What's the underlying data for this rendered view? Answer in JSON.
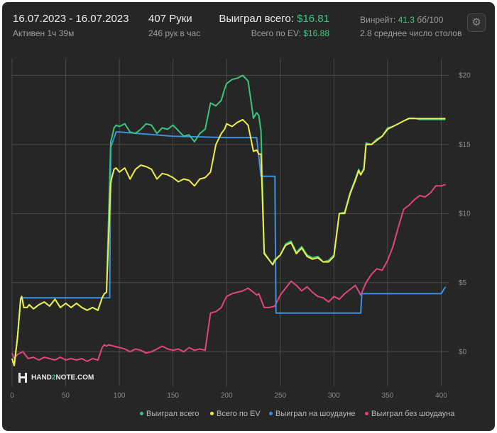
{
  "header": {
    "date_range": "16.07.2023 - 16.07.2023",
    "active_time": "Активен 1ч 39м",
    "hands": "407 Руки",
    "hands_per_hour": "246 рук в час",
    "won_total_label": "Выиграл всего:",
    "won_total_value": "$16.81",
    "ev_total_label": "Всего по EV:",
    "ev_total_value": "$16.88",
    "winrate_label": "Винрейт:",
    "winrate_value": "41.3",
    "winrate_unit": "бб/100",
    "avg_tables": "2.8 среднее число столов"
  },
  "icons": {
    "settings": "gear-icon"
  },
  "logo": {
    "text_a": "HAND",
    "text_b": "2",
    "text_c": "NOTE.COM"
  },
  "colors": {
    "background": "#262626",
    "won_total": "#3bc47d",
    "ev_total": "#f0ec4a",
    "showdown": "#3d8fe0",
    "non_showdown": "#e0457b",
    "grid": "#4a4a4a",
    "axis_text": "#8a8a8a"
  },
  "chart_data": {
    "type": "line",
    "title": "",
    "xlabel": "",
    "ylabel": "",
    "xlim": [
      0,
      407
    ],
    "ylim": [
      -2.5,
      21.2
    ],
    "x_ticks": [
      0,
      50,
      100,
      150,
      200,
      250,
      300,
      350,
      400
    ],
    "y_ticks": [
      0,
      5,
      10,
      15,
      20
    ],
    "y_tick_labels": [
      "$0",
      "$5",
      "$10",
      "$15",
      "$20"
    ],
    "grid": true,
    "legend_position": "bottom-right",
    "series": [
      {
        "key": "won_total",
        "name": "Выиграл всего",
        "x": [
          0,
          2,
          5,
          8,
          9,
          11,
          14,
          16,
          20,
          25,
          30,
          35,
          40,
          45,
          50,
          55,
          60,
          65,
          70,
          75,
          80,
          84,
          86,
          88,
          92,
          93,
          95,
          97,
          100,
          105,
          110,
          115,
          120,
          125,
          130,
          135,
          140,
          145,
          150,
          155,
          160,
          165,
          170,
          175,
          180,
          185,
          190,
          195,
          198,
          200,
          205,
          210,
          215,
          220,
          225,
          228,
          230,
          232,
          235,
          240,
          243,
          245,
          250,
          255,
          260,
          265,
          270,
          275,
          280,
          285,
          290,
          295,
          300,
          305,
          310,
          315,
          320,
          323,
          325,
          328,
          330,
          335,
          340,
          345,
          350,
          355,
          360,
          365,
          370,
          375,
          380,
          385,
          390,
          395,
          400,
          404
        ],
        "y": [
          -0.5,
          -1.0,
          1.0,
          3.8,
          4.0,
          3.2,
          3.2,
          3.4,
          3.1,
          3.4,
          3.6,
          3.3,
          3.8,
          3.2,
          3.5,
          3.2,
          3.5,
          3.2,
          3.0,
          3.2,
          3.0,
          3.9,
          4.2,
          4.3,
          15.2,
          15.5,
          16.2,
          16.4,
          16.3,
          16.5,
          15.9,
          15.8,
          16.1,
          16.5,
          16.4,
          15.8,
          16.2,
          16.1,
          16.4,
          16.0,
          15.6,
          15.7,
          15.2,
          15.8,
          16.1,
          18.0,
          17.8,
          18.2,
          19.0,
          19.4,
          19.7,
          19.8,
          20.0,
          19.6,
          16.9,
          17.3,
          17.1,
          16.0,
          7.2,
          6.6,
          6.3,
          6.7,
          7.0,
          7.8,
          8.0,
          7.2,
          7.6,
          7.0,
          6.8,
          6.9,
          6.5,
          6.6,
          7.0,
          10.0,
          10.1,
          11.5,
          12.5,
          13.2,
          12.8,
          13.3,
          15.1,
          15.0,
          15.4,
          15.6,
          16.2,
          16.3,
          16.5,
          16.7,
          16.9,
          16.9,
          16.81,
          16.81,
          16.81,
          16.81,
          16.81,
          16.81
        ]
      },
      {
        "key": "ev_total",
        "name": "Всего по EV",
        "x": [
          0,
          2,
          5,
          8,
          9,
          11,
          14,
          16,
          20,
          25,
          30,
          35,
          40,
          45,
          50,
          55,
          60,
          65,
          70,
          75,
          80,
          84,
          86,
          88,
          92,
          93,
          95,
          97,
          100,
          105,
          110,
          115,
          120,
          125,
          130,
          135,
          140,
          145,
          150,
          155,
          160,
          165,
          170,
          175,
          180,
          185,
          190,
          195,
          198,
          200,
          205,
          210,
          215,
          220,
          225,
          228,
          230,
          232,
          235,
          240,
          243,
          245,
          250,
          255,
          260,
          265,
          270,
          275,
          280,
          285,
          290,
          295,
          300,
          305,
          310,
          315,
          320,
          323,
          325,
          328,
          330,
          335,
          340,
          345,
          350,
          355,
          360,
          365,
          370,
          375,
          380,
          385,
          390,
          395,
          400,
          404
        ],
        "y": [
          -0.5,
          -1.0,
          1.0,
          3.8,
          4.0,
          3.2,
          3.2,
          3.4,
          3.1,
          3.4,
          3.6,
          3.3,
          3.8,
          3.2,
          3.5,
          3.2,
          3.5,
          3.2,
          3.0,
          3.2,
          3.0,
          3.9,
          4.2,
          4.3,
          12.2,
          12.6,
          13.2,
          13.3,
          13.0,
          13.3,
          12.5,
          13.2,
          13.5,
          13.4,
          13.2,
          12.5,
          12.9,
          12.8,
          12.6,
          12.3,
          12.5,
          12.4,
          12.0,
          12.5,
          12.6,
          13.0,
          15.0,
          15.8,
          16.1,
          16.5,
          16.3,
          16.6,
          16.8,
          16.4,
          14.5,
          14.6,
          14.3,
          14.3,
          7.1,
          6.6,
          6.3,
          6.6,
          7.0,
          7.7,
          7.9,
          7.1,
          7.5,
          6.9,
          6.7,
          6.8,
          6.5,
          6.5,
          6.9,
          10.0,
          10.0,
          11.4,
          12.4,
          13.1,
          12.8,
          13.2,
          15.0,
          15.0,
          15.3,
          15.6,
          16.1,
          16.3,
          16.5,
          16.7,
          16.88,
          16.88,
          16.88,
          16.88,
          16.88,
          16.88,
          16.88,
          16.88
        ]
      },
      {
        "key": "showdown",
        "name": "Выиграл на шоудауне",
        "x": [
          0,
          2,
          5,
          8,
          12,
          40,
          84,
          91,
          92,
          97,
          100,
          150,
          200,
          228,
          232,
          245,
          246,
          300,
          325,
          326,
          400,
          404
        ],
        "y": [
          -0.5,
          -1.0,
          1.0,
          3.9,
          3.9,
          3.9,
          3.9,
          3.9,
          14.8,
          15.9,
          15.9,
          15.6,
          15.5,
          15.5,
          12.7,
          12.7,
          2.8,
          2.8,
          2.8,
          4.2,
          4.2,
          4.7
        ]
      },
      {
        "key": "non_showdown",
        "name": "Выиграл без шоудауна",
        "x": [
          0,
          2,
          5,
          10,
          15,
          20,
          25,
          30,
          35,
          40,
          45,
          50,
          55,
          60,
          65,
          70,
          75,
          80,
          84,
          86,
          88,
          90,
          95,
          100,
          105,
          110,
          115,
          120,
          125,
          130,
          135,
          140,
          145,
          150,
          155,
          160,
          165,
          170,
          175,
          180,
          185,
          190,
          195,
          198,
          200,
          205,
          210,
          215,
          220,
          225,
          228,
          230,
          235,
          240,
          245,
          250,
          255,
          260,
          265,
          270,
          275,
          280,
          285,
          290,
          295,
          300,
          305,
          310,
          315,
          320,
          325,
          330,
          335,
          340,
          345,
          350,
          355,
          360,
          365,
          370,
          375,
          380,
          385,
          390,
          395,
          400,
          404
        ],
        "y": [
          -0.1,
          -0.5,
          -0.2,
          0.0,
          -0.5,
          -0.4,
          -0.6,
          -0.4,
          -0.5,
          -0.6,
          -0.4,
          -0.6,
          -0.5,
          -0.6,
          -0.5,
          -0.7,
          -0.5,
          -0.6,
          0.3,
          0.5,
          0.4,
          0.5,
          0.4,
          0.3,
          0.2,
          0.0,
          0.2,
          0.1,
          -0.1,
          0.0,
          0.2,
          0.4,
          0.2,
          0.1,
          0.2,
          0.0,
          0.3,
          0.1,
          0.2,
          0.1,
          2.8,
          2.9,
          3.2,
          3.7,
          4.0,
          4.2,
          4.3,
          4.4,
          4.6,
          4.3,
          4.1,
          4.2,
          3.2,
          3.2,
          3.3,
          4.1,
          4.6,
          5.1,
          4.8,
          4.4,
          4.7,
          4.3,
          4.0,
          3.9,
          3.6,
          4.0,
          3.8,
          4.2,
          4.5,
          4.8,
          4.1,
          5.0,
          5.6,
          6.0,
          5.9,
          6.6,
          7.6,
          9.0,
          10.3,
          10.6,
          11.0,
          11.3,
          11.2,
          11.5,
          12.0,
          12.0,
          12.1
        ]
      }
    ]
  }
}
